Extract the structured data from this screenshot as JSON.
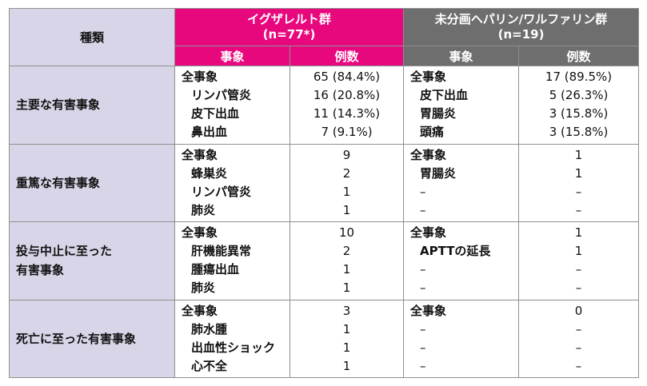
{
  "headers": {
    "kind": "種類",
    "group1_name": "イグザレルト群",
    "group1_n": "(n=77*)",
    "group2_name": "未分画ヘパリン/ワルファリン群",
    "group2_n": "(n=19)",
    "event": "事象",
    "count": "例数"
  },
  "rows": [
    {
      "kind": "主要な有害事象",
      "g1_events": [
        "全事象",
        "リンパ管炎",
        "皮下出血",
        "鼻出血"
      ],
      "g1_counts": [
        "65 (84.4%)",
        "16 (20.8%)",
        "11 (14.3%)",
        "7 (9.1%)"
      ],
      "g2_events": [
        "全事象",
        "皮下出血",
        "胃腸炎",
        "頭痛"
      ],
      "g2_counts": [
        "17 (89.5%)",
        "5 (26.3%)",
        "3 (15.8%)",
        "3 (15.8%)"
      ]
    },
    {
      "kind": "重篤な有害事象",
      "g1_events": [
        "全事象",
        "蜂巣炎",
        "リンパ管炎",
        "肺炎"
      ],
      "g1_counts": [
        "9",
        "2",
        "1",
        "1"
      ],
      "g2_events": [
        "全事象",
        "胃腸炎",
        "–",
        "–"
      ],
      "g2_counts": [
        "1",
        "1",
        "–",
        "–"
      ]
    },
    {
      "kind_lines": [
        "投与中止に至った",
        "有害事象"
      ],
      "g1_events": [
        "全事象",
        "肝機能異常",
        "腫瘍出血",
        "肺炎"
      ],
      "g1_counts": [
        "10",
        "2",
        "1",
        "1"
      ],
      "g2_events": [
        "全事象",
        "APTTの延長",
        "–",
        "–"
      ],
      "g2_counts": [
        "1",
        "1",
        "–",
        "–"
      ]
    },
    {
      "kind": "死亡に至った有害事象",
      "g1_events": [
        "全事象",
        "肺水腫",
        "出血性ショック",
        "心不全"
      ],
      "g1_counts": [
        "3",
        "1",
        "1",
        "1"
      ],
      "g2_events": [
        "全事象",
        "–",
        "–",
        "–"
      ],
      "g2_counts": [
        "0",
        "–",
        "–",
        "–"
      ]
    }
  ]
}
